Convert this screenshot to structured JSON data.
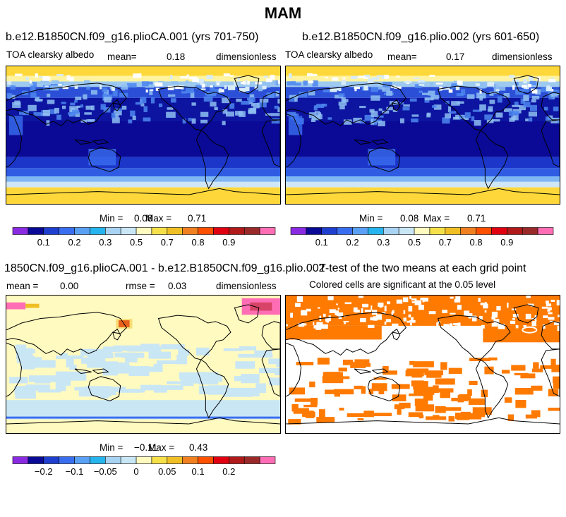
{
  "page_title": "MAM",
  "chart_data": [
    {
      "type": "heatmap",
      "title": "b.e12.B1850CN.f09_g16.plioCA.001 (yrs 701-750)",
      "variable": "TOA clearsky albedo",
      "mean_label": "mean=",
      "mean_value": "0.18",
      "units": "dimensionless",
      "min_label": "Min =",
      "min_value": "0.08",
      "max_label": "Max =",
      "max_value": "0.71",
      "colorbar": {
        "colors": [
          "#8a2be2",
          "#0a0a96",
          "#1f3fcf",
          "#3a6ef0",
          "#5aa0f5",
          "#25b4ee",
          "#a8d3f2",
          "#c9e6f5",
          "#fffac0",
          "#f5e04a",
          "#f0bf25",
          "#f08020",
          "#ff5000",
          "#e00010",
          "#b01a1a",
          "#9a2a2a",
          "#ff6eb4"
        ],
        "tick_labels": [
          "0.1",
          "0.2",
          "0.3",
          "0.5",
          "0.7",
          "0.8",
          "0.9"
        ]
      },
      "field": "Low albedo (~0.1) over oceans; high albedo (~0.7) over polar ice caps, Greenland and Antarctica."
    },
    {
      "type": "heatmap",
      "title": "b.e12.B1850CN.f09_g16.plio.002 (yrs 601-650)",
      "variable": "TOA clearsky albedo",
      "mean_label": "mean=",
      "mean_value": "0.17",
      "units": "dimensionless",
      "min_label": "Min =",
      "min_value": "0.08",
      "max_label": "Max =",
      "max_value": "0.71",
      "colorbar": {
        "colors": [
          "#8a2be2",
          "#0a0a96",
          "#1f3fcf",
          "#3a6ef0",
          "#5aa0f5",
          "#25b4ee",
          "#a8d3f2",
          "#c9e6f5",
          "#fffac0",
          "#f5e04a",
          "#f0bf25",
          "#f08020",
          "#ff5000",
          "#e00010",
          "#b01a1a",
          "#9a2a2a",
          "#ff6eb4"
        ],
        "tick_labels": [
          "0.1",
          "0.2",
          "0.3",
          "0.5",
          "0.7",
          "0.8",
          "0.9"
        ]
      }
    },
    {
      "type": "heatmap",
      "title": "1850CN.f09_g16.plioCA.001 - b.e12.B1850CN.f09_g16.plio.002",
      "mean_label": "mean =",
      "mean_value": "0.00",
      "rmse_label": "rmse =",
      "rmse_value": "0.03",
      "units": "dimensionless",
      "min_label": "Min =",
      "min_value": "−0.11",
      "max_label": "Max =",
      "max_value": "0.43",
      "colorbar": {
        "colors": [
          "#8a2be2",
          "#0a0a96",
          "#1f3fcf",
          "#3a6ef0",
          "#5aa0f5",
          "#25b4ee",
          "#a8d3f2",
          "#c9e6f5",
          "#fffac0",
          "#f5e04a",
          "#f0bf25",
          "#f08020",
          "#ff5000",
          "#e00010",
          "#b01a1a",
          "#9a2a2a",
          "#ff6eb4"
        ],
        "tick_labels": [
          "−0.2",
          "−0.1",
          "−0.05",
          "0",
          "0.05",
          "0.1",
          "0.2"
        ]
      }
    },
    {
      "type": "heatmap",
      "title": "T-test of the two means at each grid point",
      "subtitle": "Colored cells are significant at the 0.05 level",
      "significant_color": "#ff7a00"
    }
  ]
}
